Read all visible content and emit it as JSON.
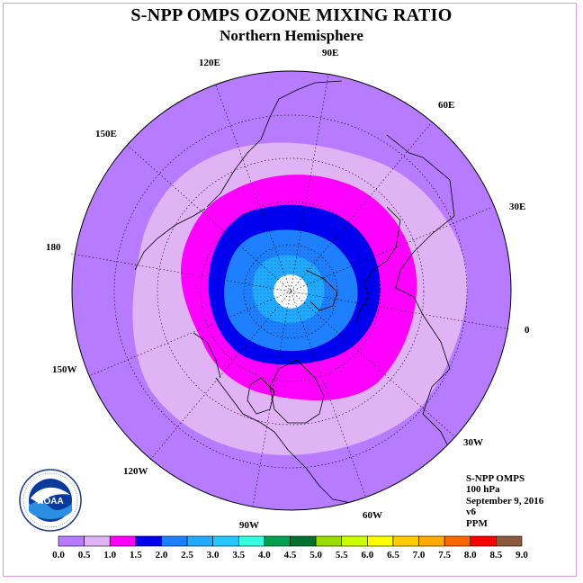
{
  "header": {
    "title": "S-NPP OMPS OZONE MIXING RATIO",
    "subtitle": "Northern Hemisphere"
  },
  "map": {
    "projection": "north-polar-stereographic",
    "longitude_labels": [
      "120E",
      "90E",
      "60E",
      "30E",
      "0",
      "30W",
      "60W",
      "90W",
      "120W",
      "150W",
      "180",
      "150E"
    ],
    "contour_colors": {
      "0.5-1.0": "#e0b3f5",
      "1.0-1.5": "#ff00ff",
      "1.5-2.0": "#0000ee",
      "2.0-2.5": "#1f80ff",
      "2.5-3.0": "#22aaff",
      "background": "#b77bff",
      "pole_missing": "#ffffff"
    }
  },
  "info": {
    "lines": [
      "S-NPP OMPS",
      "100 hPa",
      "September 9, 2016",
      "v6",
      "PPM"
    ]
  },
  "logo": {
    "text": "NOAA",
    "ring_text": "NATIONAL OCEANIC AND ATMOSPHERIC ADMINISTRATION · U.S. DEPARTMENT OF COMMERCE"
  },
  "colorbar": {
    "labels": [
      "0.0",
      "0.5",
      "1.0",
      "1.5",
      "2.0",
      "2.5",
      "3.0",
      "3.5",
      "4.0",
      "4.5",
      "5.0",
      "5.5",
      "6.0",
      "6.5",
      "7.0",
      "7.5",
      "8.0",
      "8.5",
      "9.0"
    ],
    "colors": [
      "#b77bff",
      "#e0b3f5",
      "#ff00ff",
      "#0000ee",
      "#1f80ff",
      "#22aaff",
      "#22c8ff",
      "#33ffe0",
      "#00a050",
      "#007030",
      "#99dd00",
      "#ccff00",
      "#ffff00",
      "#ffcc00",
      "#ffaa00",
      "#ff6600",
      "#ff0000",
      "#8b5a3c"
    ]
  }
}
